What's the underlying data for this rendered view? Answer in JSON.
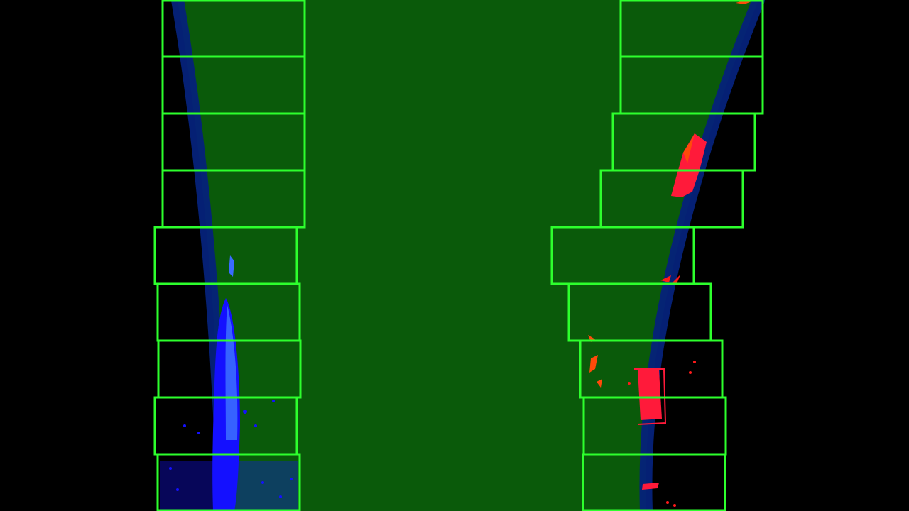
{
  "image": {
    "kind": "lane-detection-sliding-window-visualization",
    "background": "#000000",
    "colors": {
      "lane_region_fill": "#0a5a0a",
      "window_border": "#2dff2d",
      "fit_curve": "#05227a",
      "left_lane_pixels": "#1410ff",
      "left_lane_highlight": "#3a6bff",
      "right_lane_pixels": "#ff1a3a",
      "right_lane_accent": "#ff4a0a"
    },
    "left_windows_count": 9,
    "right_windows_count": 9
  }
}
